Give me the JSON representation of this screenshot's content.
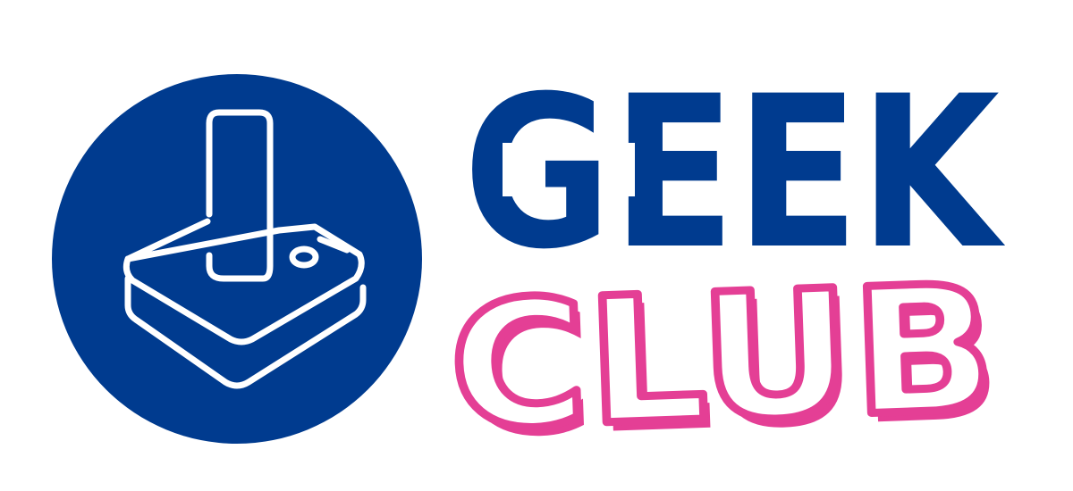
{
  "logo": {
    "wordmark_top": "GEEK",
    "wordmark_bottom": "CLUB",
    "icon": "joystick-icon",
    "colors": {
      "navy": "#003B8F",
      "pink": "#E43F95",
      "white": "#FFFFFF"
    }
  }
}
